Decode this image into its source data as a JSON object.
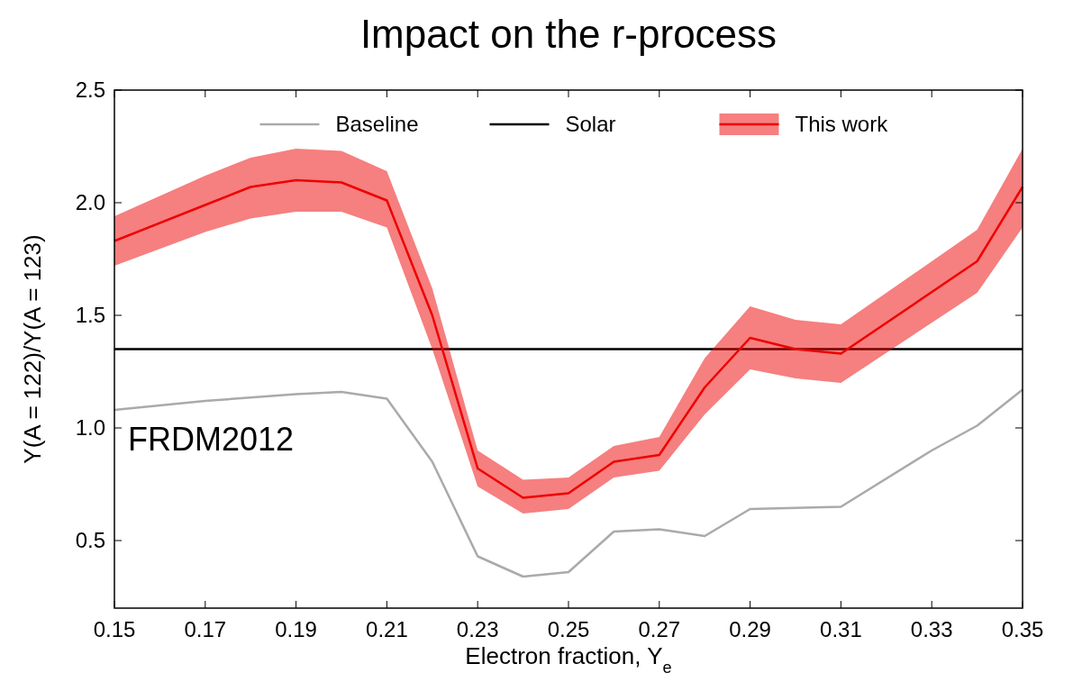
{
  "chart_data": {
    "type": "line",
    "title": "Impact on the r-process",
    "xlabel": "Electron fraction, Y$_{e}$",
    "ylabel": "Y(A = 122)/Y(A = 123)",
    "xlim": [
      0.15,
      0.35
    ],
    "ylim": [
      0.2,
      2.5
    ],
    "xticks": [
      0.15,
      0.17,
      0.19,
      0.21,
      0.23,
      0.25,
      0.27,
      0.29,
      0.31,
      0.33,
      0.35
    ],
    "yticks": [
      0.5,
      {
        "value": 1,
        "label": "1.0"
      },
      1.5,
      {
        "value": 2,
        "label": "2.0"
      },
      2.5
    ],
    "legend": "top",
    "grid": false,
    "annotations": [
      "FRDM2012"
    ],
    "series": [
      {
        "name": "Baseline",
        "color": "#aaaaaa",
        "x": [
          0.15,
          0.17,
          0.19,
          0.2,
          0.21,
          0.22,
          0.23,
          0.24,
          0.25,
          0.26,
          0.27,
          0.28,
          0.29,
          0.3,
          0.31,
          0.33,
          0.34,
          0.35
        ],
        "values": [
          1.08,
          1.12,
          1.15,
          1.16,
          1.13,
          0.85,
          0.43,
          0.34,
          0.36,
          0.54,
          0.55,
          0.52,
          0.64,
          0.645,
          0.65,
          0.9,
          1.01,
          1.17
        ]
      },
      {
        "name": "Solar",
        "color": "#000000",
        "x": [
          0.15,
          0.35
        ],
        "values": [
          1.35,
          1.35
        ]
      },
      {
        "name": "This work",
        "color": "#ee0000",
        "x": [
          0.15,
          0.17,
          0.18,
          0.19,
          0.2,
          0.21,
          0.22,
          0.23,
          0.24,
          0.25,
          0.26,
          0.27,
          0.28,
          0.29,
          0.3,
          0.31,
          0.34,
          0.35
        ],
        "values": [
          1.83,
          1.99,
          2.07,
          2.1,
          2.09,
          2.01,
          1.5,
          0.82,
          0.69,
          0.71,
          0.85,
          0.88,
          1.18,
          1.4,
          1.35,
          1.33,
          1.74,
          2.07
        ],
        "lower": [
          1.72,
          1.87,
          1.93,
          1.96,
          1.96,
          1.89,
          1.35,
          0.74,
          0.62,
          0.64,
          0.78,
          0.81,
          1.06,
          1.26,
          1.22,
          1.2,
          1.6,
          1.89
        ],
        "upper": [
          1.94,
          2.12,
          2.2,
          2.24,
          2.23,
          2.14,
          1.62,
          0.9,
          0.77,
          0.78,
          0.92,
          0.96,
          1.31,
          1.54,
          1.48,
          1.46,
          1.88,
          2.24
        ]
      }
    ]
  }
}
